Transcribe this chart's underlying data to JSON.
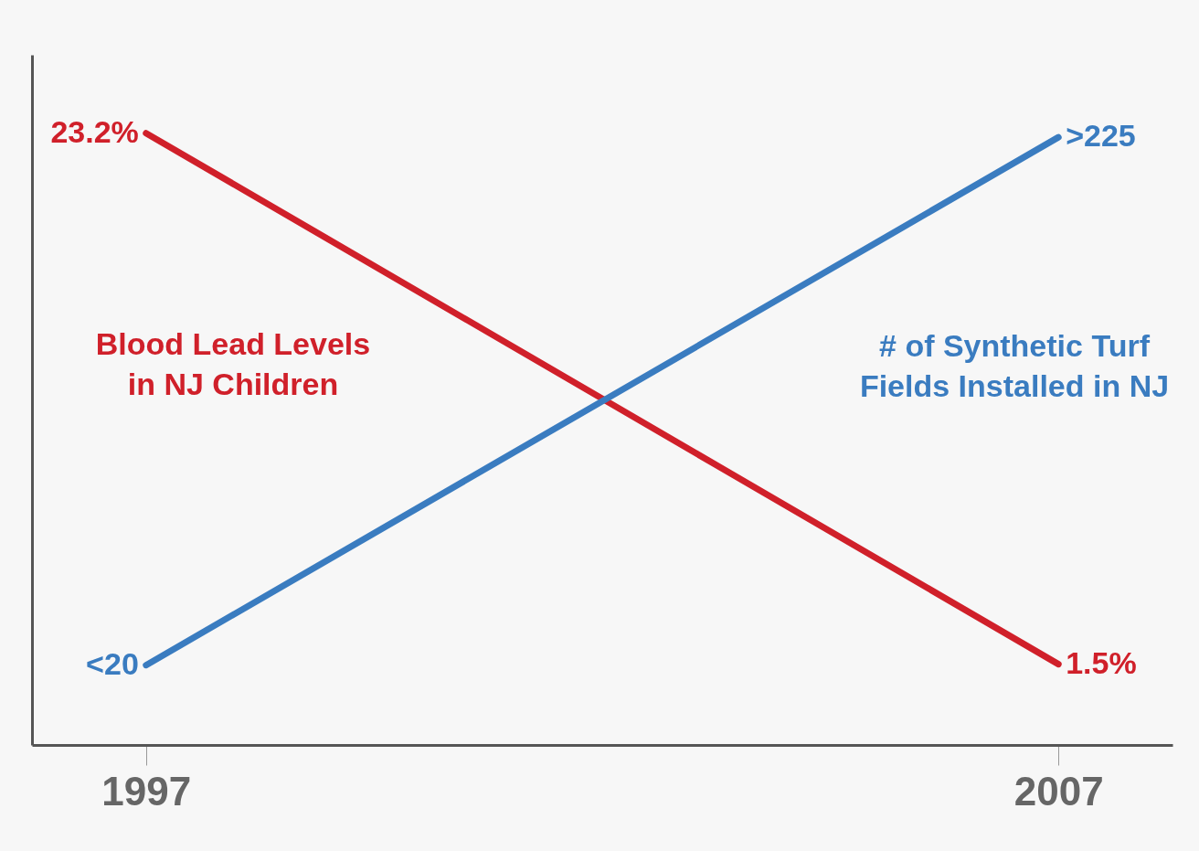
{
  "chart_data": {
    "type": "line",
    "x": [
      1997,
      2007
    ],
    "xlim": [
      1995.75,
      2008.25
    ],
    "xticks": [
      1997,
      2007
    ],
    "ylim": [
      -1.8,
      26.4
    ],
    "y2lim": [
      -11,
      257
    ],
    "tick_labels": "x",
    "series": [
      {
        "name": "Blood Lead Levels\nin NJ Children",
        "color": "#d0202a",
        "values": [
          23.2,
          1.5
        ],
        "value_labels": [
          "23.2%",
          "1.5%"
        ]
      },
      {
        "name": "# of Synthetic Turf\nFields Installed in NJ",
        "color": "#3a7cc0",
        "axis": "y2",
        "values": [
          20,
          225
        ],
        "value_labels": [
          "<20",
          ">225"
        ]
      }
    ]
  }
}
